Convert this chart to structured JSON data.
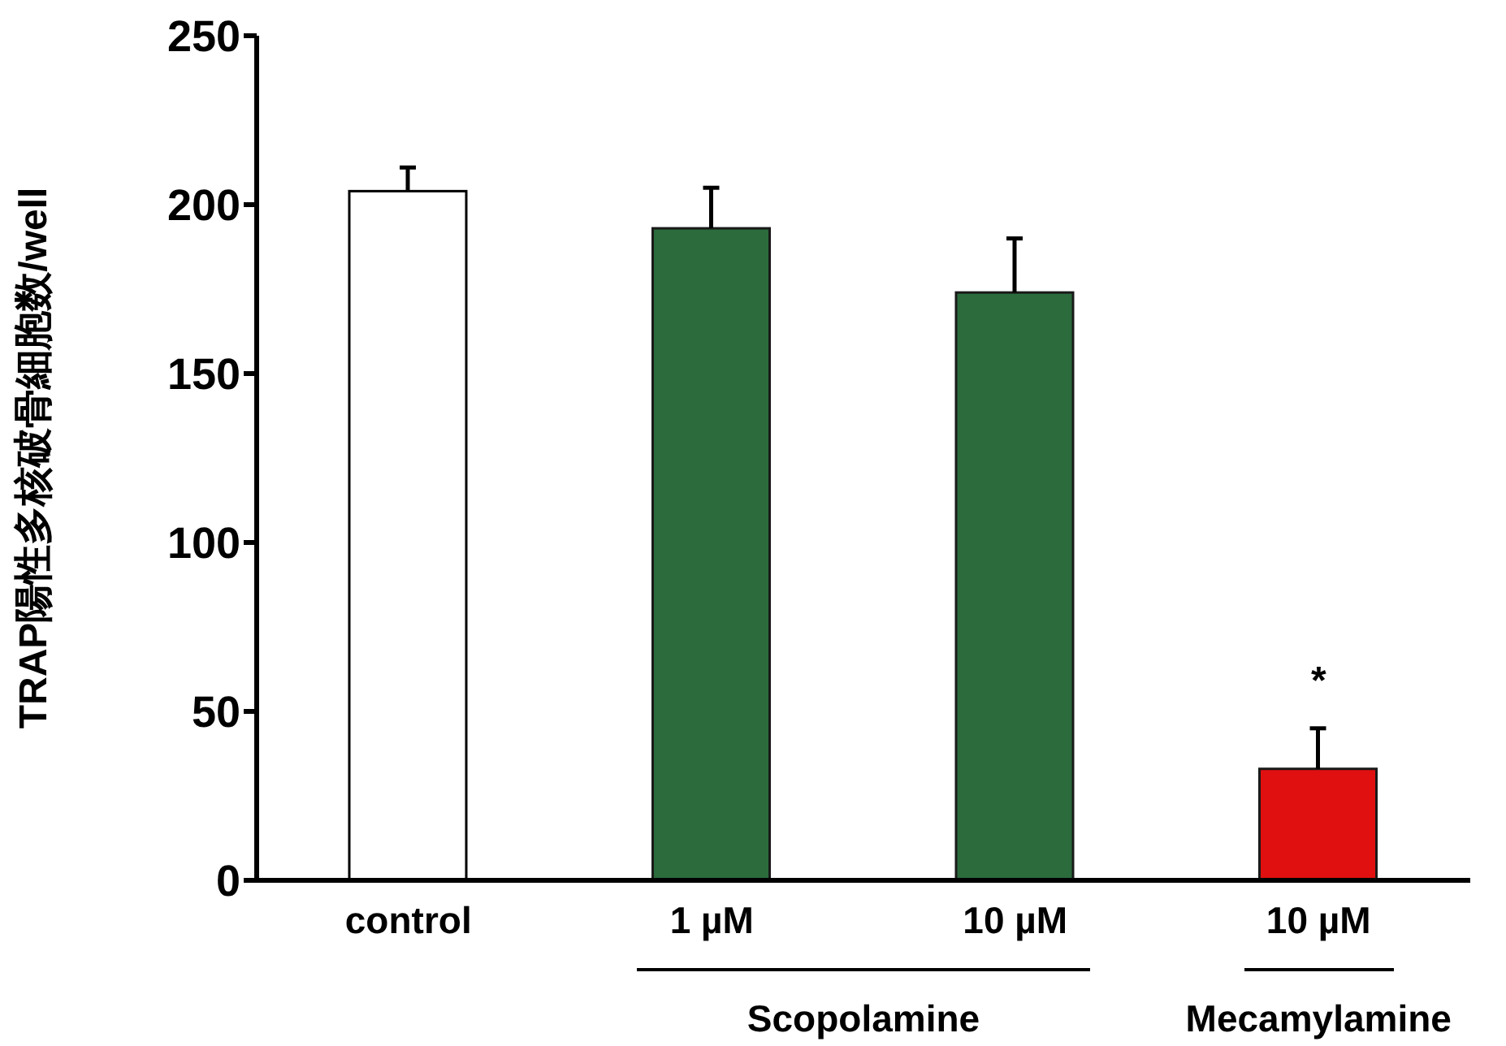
{
  "chart_data": {
    "type": "bar",
    "ylabel": "TRAP陽性多核破骨細胞数/well",
    "categories": [
      "control",
      "1 µM",
      "10 µM",
      "10 µM"
    ],
    "values": [
      204,
      193,
      174,
      33
    ],
    "errors": [
      7,
      12,
      16,
      12
    ],
    "colors": [
      "#ffffff",
      "#2b6b3c",
      "#2b6b3c",
      "#e01010"
    ],
    "ylim": [
      0,
      250
    ],
    "yticks": [
      0,
      50,
      100,
      150,
      200,
      250
    ],
    "annotations": [
      "*",
      "Scopolamine",
      "Mecamylamine"
    ]
  }
}
